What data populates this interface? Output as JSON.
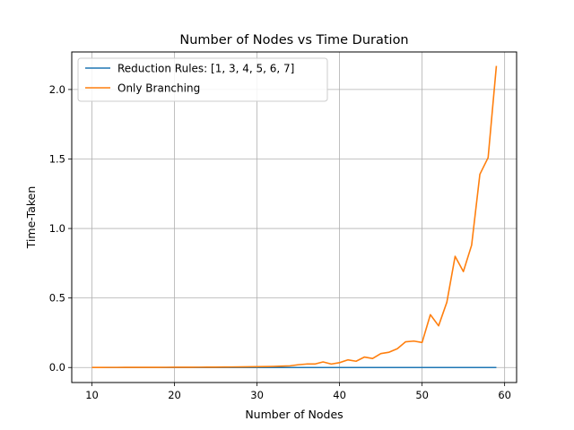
{
  "chart_data": {
    "type": "line",
    "title": "Number of Nodes vs Time Duration",
    "xlabel": "Number of Nodes",
    "ylabel": "Time-Taken",
    "xlim": [
      7.55,
      61.45
    ],
    "ylim": [
      -0.108,
      2.27
    ],
    "xticks": [
      10,
      20,
      30,
      40,
      50,
      60
    ],
    "yticks": [
      0.0,
      0.5,
      1.0,
      1.5,
      2.0
    ],
    "xtick_labels": [
      "10",
      "20",
      "30",
      "40",
      "50",
      "60"
    ],
    "ytick_labels": [
      "0.0",
      "0.5",
      "1.0",
      "1.5",
      "2.0"
    ],
    "grid": true,
    "legend_position": "top-left",
    "x": [
      10,
      11,
      12,
      13,
      14,
      15,
      16,
      17,
      18,
      19,
      20,
      21,
      22,
      23,
      24,
      25,
      26,
      27,
      28,
      29,
      30,
      31,
      32,
      33,
      34,
      35,
      36,
      37,
      38,
      39,
      40,
      41,
      42,
      43,
      44,
      45,
      46,
      47,
      48,
      49,
      50,
      51,
      52,
      53,
      54,
      55,
      56,
      57,
      58,
      59
    ],
    "series": [
      {
        "name": "Reduction Rules: [1, 3, 4, 5, 6, 7]",
        "color": "#1f77b4",
        "values": [
          0,
          0,
          0,
          0,
          0,
          0,
          0,
          0,
          0,
          0,
          0,
          0,
          0,
          0,
          0,
          0,
          0,
          0,
          0,
          0,
          0,
          0,
          0,
          0,
          0,
          0,
          0,
          0,
          0,
          0,
          0,
          0,
          0,
          0,
          0,
          0,
          0,
          0,
          0,
          0,
          0,
          0,
          0,
          0,
          0,
          0,
          0,
          0,
          0,
          0
        ]
      },
      {
        "name": "Only Branching",
        "color": "#ff7f0e",
        "values": [
          0.0005,
          0.0006,
          0.0007,
          0.0008,
          0.0009,
          0.001,
          0.0011,
          0.0012,
          0.0013,
          0.0015,
          0.0017,
          0.0019,
          0.0021,
          0.0024,
          0.0027,
          0.003,
          0.0035,
          0.004,
          0.0045,
          0.005,
          0.006,
          0.007,
          0.008,
          0.01,
          0.012,
          0.02,
          0.025,
          0.025,
          0.04,
          0.025,
          0.035,
          0.055,
          0.045,
          0.075,
          0.065,
          0.1,
          0.11,
          0.135,
          0.185,
          0.19,
          0.18,
          0.38,
          0.3,
          0.47,
          0.8,
          0.69,
          0.88,
          1.39,
          1.51,
          2.17
        ]
      }
    ]
  }
}
